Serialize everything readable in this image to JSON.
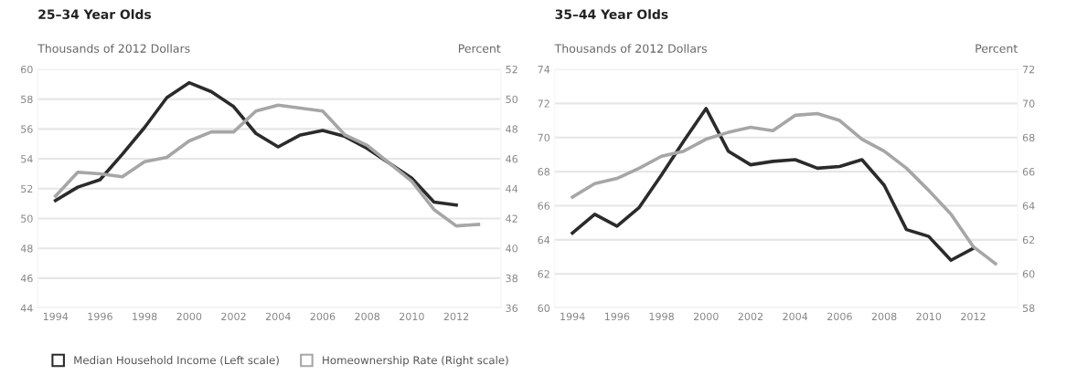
{
  "chart_data": [
    {
      "type": "line",
      "title": "25–34 Year Olds",
      "ylabel": "Thousands of 2012 Dollars",
      "y2label": "Percent",
      "x": [
        1994,
        1995,
        1996,
        1997,
        1998,
        1999,
        2000,
        2001,
        2002,
        2003,
        2004,
        2005,
        2006,
        2007,
        2008,
        2009,
        2010,
        2011,
        2012
      ],
      "series": [
        {
          "name": "Median Household Income (Left scale)",
          "color": "#2b2b2b",
          "values": [
            51.2,
            52.1,
            52.6,
            54.3,
            56.1,
            58.1,
            59.1,
            58.5,
            57.5,
            55.7,
            54.8,
            55.6,
            55.9,
            55.5,
            54.7,
            53.7,
            52.7,
            51.1,
            50.9
          ]
        },
        {
          "name": "Homeownership Rate (Right scale)",
          "color": "#a6a6a6",
          "axis": "y2",
          "x": [
            1994,
            1995,
            1996,
            1997,
            1998,
            1999,
            2000,
            2001,
            2002,
            2003,
            2004,
            2005,
            2006,
            2007,
            2008,
            2009,
            2010,
            2011,
            2012,
            2013
          ],
          "values": [
            43.5,
            45.1,
            45.0,
            44.8,
            45.8,
            46.1,
            47.2,
            47.8,
            47.8,
            49.2,
            49.6,
            49.4,
            49.2,
            47.6,
            46.9,
            45.7,
            44.5,
            42.6,
            41.5,
            41.6
          ]
        }
      ],
      "xlim": [
        1993.2,
        2014
      ],
      "xticks": [
        1994,
        1996,
        1998,
        2000,
        2002,
        2004,
        2006,
        2008,
        2010,
        2012
      ],
      "ylim": [
        44,
        60
      ],
      "yticks": [
        44,
        46,
        48,
        50,
        52,
        54,
        56,
        58,
        60
      ],
      "y2lim": [
        36,
        52
      ],
      "y2ticks": [
        36,
        38,
        40,
        42,
        44,
        46,
        48,
        50,
        52
      ],
      "grid": "y",
      "legend": "bottom",
      "marker": "none",
      "line_style": "solid"
    },
    {
      "type": "line",
      "title": "35–44 Year Olds",
      "ylabel": "Thousands of 2012 Dollars",
      "y2label": "Percent",
      "x": [
        1994,
        1995,
        1996,
        1997,
        1998,
        1999,
        2000,
        2001,
        2002,
        2003,
        2004,
        2005,
        2006,
        2007,
        2008,
        2009,
        2010,
        2011,
        2012
      ],
      "series": [
        {
          "color": "#2b2b2b",
          "values": [
            64.4,
            65.5,
            64.8,
            65.9,
            67.8,
            69.8,
            71.7,
            69.2,
            68.4,
            68.6,
            68.7,
            68.2,
            68.3,
            68.7,
            67.2,
            64.6,
            64.2,
            62.8,
            63.5
          ]
        },
        {
          "color": "#a6a6a6",
          "axis": "y2",
          "x": [
            1994,
            1995,
            1996,
            1997,
            1998,
            1999,
            2000,
            2001,
            2002,
            2003,
            2004,
            2005,
            2006,
            2007,
            2008,
            2009,
            2010,
            2011,
            2012,
            2013
          ],
          "values": [
            64.5,
            65.3,
            65.6,
            66.2,
            66.9,
            67.2,
            67.9,
            68.3,
            68.6,
            68.4,
            69.3,
            69.4,
            69.0,
            67.9,
            67.2,
            66.2,
            64.9,
            63.5,
            61.6,
            60.6
          ]
        }
      ],
      "xlim": [
        1993.2,
        2014
      ],
      "xticks": [
        1994,
        1996,
        1998,
        2000,
        2002,
        2004,
        2006,
        2008,
        2010,
        2012
      ],
      "ylim": [
        60,
        74
      ],
      "yticks": [
        60,
        62,
        64,
        66,
        68,
        70,
        72,
        74
      ],
      "y2lim": [
        58,
        72
      ],
      "y2ticks": [
        58,
        60,
        62,
        64,
        66,
        68,
        70,
        72
      ],
      "grid": "y",
      "marker": "none",
      "line_style": "solid"
    }
  ]
}
